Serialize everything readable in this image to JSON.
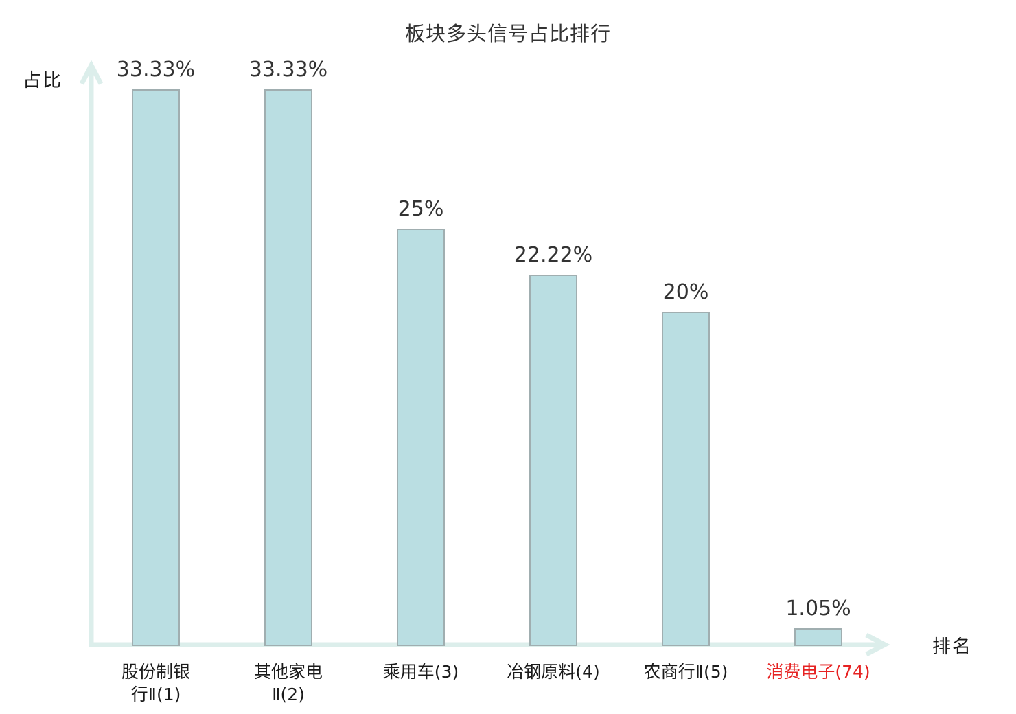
{
  "title": "板块多头信号占比排行",
  "y_axis_label": "占比",
  "x_axis_label": "排名",
  "colors": {
    "bar_fill": "#badee2",
    "bar_border": "#a0aeb0",
    "axis_line": "#dceeeb",
    "text": "#333333",
    "highlight": "#e62222"
  },
  "chart_data": {
    "type": "bar",
    "title": "板块多头信号占比排行",
    "xlabel": "排名",
    "ylabel": "占比",
    "categories": [
      "股份制银行Ⅱ(1)",
      "其他家电Ⅱ(2)",
      "乘用车(3)",
      "冶钢原料(4)",
      "农商行Ⅱ(5)",
      "消费电子(74)"
    ],
    "category_display": [
      "股份制银\n行Ⅱ(1)",
      "其他家电\nⅡ(2)",
      "乘用车(3)",
      "冶钢原料(4)",
      "农商行Ⅱ(5)",
      "消费电子(74)"
    ],
    "values": [
      33.33,
      33.33,
      25,
      22.22,
      20,
      1.05
    ],
    "value_labels": [
      "33.33%",
      "33.33%",
      "25%",
      "22.22%",
      "20%",
      "1.05%"
    ],
    "unit": "percent",
    "highlight_index": 5,
    "ylim": [
      0,
      35
    ],
    "grid": false,
    "legend": "none"
  }
}
